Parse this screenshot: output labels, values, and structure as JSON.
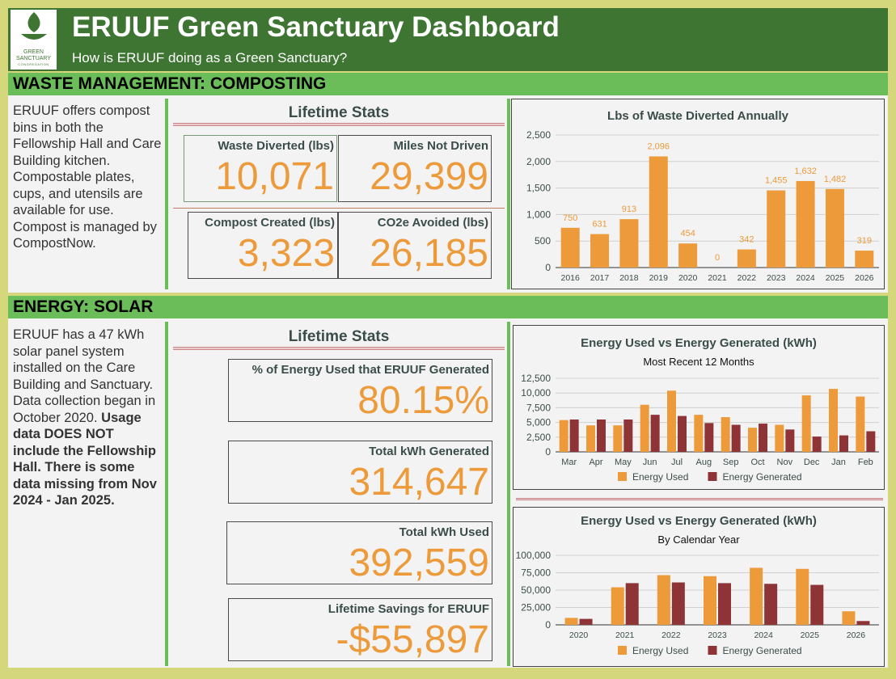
{
  "header": {
    "title": "ERUUF Green Sanctuary Dashboard",
    "subtitle": "How is ERUUF doing as a Green Sanctuary?",
    "logo_text": [
      "GREEN",
      "SANCTUARY",
      "CONGREGATION"
    ]
  },
  "colors": {
    "accent_orange": "#ec9a3a",
    "dark_red": "#8e3437",
    "header_green": "#3e7532",
    "section_green": "#6abd58"
  },
  "waste": {
    "section_title": "WASTE MANAGEMENT: COMPOSTING",
    "description": "ERUUF offers compost bins in both the Fellowship Hall and Care Building kitchen. Compostable plates, cups, and utensils are available for use. Compost is managed by CompostNow.",
    "stats_title": "Lifetime Stats",
    "stats": [
      {
        "label": "Waste Diverted (lbs)",
        "value": "10,071"
      },
      {
        "label": "Miles Not Driven",
        "value": "29,399"
      },
      {
        "label": "Compost Created (lbs)",
        "value": "3,323"
      },
      {
        "label": "CO2e Avoided (lbs)",
        "value": "26,185"
      }
    ]
  },
  "energy": {
    "section_title": "ENERGY: SOLAR",
    "description_plain": "ERUUF has a 47 kWh solar panel system installed on the Care Building and Sanctuary. Data collection began in October 2020.",
    "description_bold": "Usage data DOES NOT include the Fellowship Hall. There is some data missing from Nov 2024 - Jan 2025.",
    "stats_title": "Lifetime Stats",
    "stats": [
      {
        "label": "% of Energy Used that ERUUF Generated",
        "value": "80.15%"
      },
      {
        "label": "Total kWh Generated",
        "value": "314,647"
      },
      {
        "label": "Total kWh Used",
        "value": "392,559"
      },
      {
        "label": "Lifetime Savings for ERUUF",
        "value": "-$55,897"
      }
    ]
  },
  "chart_data": [
    {
      "type": "bar",
      "title": "Lbs of Waste Diverted Annually",
      "categories": [
        "2016",
        "2017",
        "2018",
        "2019",
        "2020",
        "2021",
        "2022",
        "2023",
        "2024",
        "2025",
        "2026"
      ],
      "series": [
        {
          "values": [
            750,
            631,
            913,
            2096,
            454,
            0,
            342,
            1455,
            1632,
            1482,
            319
          ],
          "color": "#ec9a3a"
        }
      ],
      "data_labels": [
        "750",
        "631",
        "913",
        "2,096",
        "454",
        "0",
        "342",
        "1,455",
        "1,632",
        "1,482",
        "319"
      ],
      "ylim": [
        0,
        2500
      ],
      "yticks": [
        "0",
        "500",
        "1,000",
        "1,500",
        "2,000",
        "2,500"
      ],
      "grid": true
    },
    {
      "type": "bar",
      "title": "Energy Used vs Energy Generated (kWh)",
      "subtitle": "Most Recent 12 Months",
      "categories": [
        "Mar",
        "Apr",
        "May",
        "Jun",
        "Jul",
        "Aug",
        "Sep",
        "Oct",
        "Nov",
        "Dec",
        "Jan",
        "Feb"
      ],
      "series": [
        {
          "name": "Energy Used",
          "color": "#ec9a3a",
          "values": [
            5400,
            4500,
            4500,
            8000,
            10400,
            6300,
            5900,
            4100,
            4600,
            9600,
            10700,
            9400
          ]
        },
        {
          "name": "Energy Generated",
          "color": "#8e3437",
          "values": [
            5500,
            5500,
            5500,
            6300,
            6100,
            4900,
            4600,
            4800,
            3800,
            2600,
            2800,
            3500
          ]
        }
      ],
      "ylim": [
        0,
        12500
      ],
      "yticks": [
        "0",
        "2,500",
        "5,000",
        "7,500",
        "10,000",
        "12,500"
      ],
      "legend": "bottom",
      "grid": true
    },
    {
      "type": "bar",
      "title": "Energy Used vs Energy Generated (kWh)",
      "subtitle": "By Calendar Year",
      "categories": [
        "2020",
        "2021",
        "2022",
        "2023",
        "2024",
        "2025",
        "2026"
      ],
      "series": [
        {
          "name": "Energy Used",
          "color": "#ec9a3a",
          "values": [
            10000,
            54000,
            71500,
            70000,
            82000,
            80500,
            19500
          ]
        },
        {
          "name": "Energy Generated",
          "color": "#8e3437",
          "values": [
            8600,
            60000,
            61000,
            60000,
            59000,
            57500,
            5500
          ]
        }
      ],
      "ylim": [
        0,
        100000
      ],
      "yticks": [
        "0",
        "25,000",
        "50,000",
        "75,000",
        "100,000"
      ],
      "legend": "bottom",
      "grid": true
    }
  ]
}
